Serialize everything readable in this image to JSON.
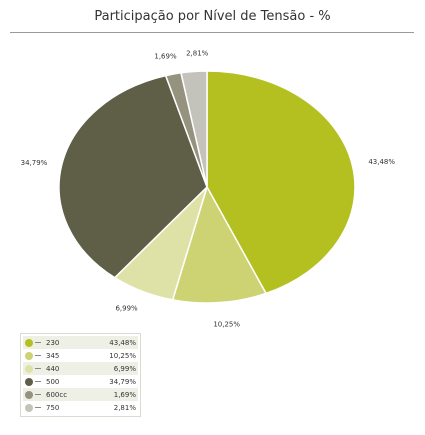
{
  "chart_data": {
    "type": "pie",
    "title": "Participação por Nível de Tensão - %",
    "slices": [
      {
        "name": "230",
        "value": 43.48,
        "label": "43,48%",
        "color": "#b4c020"
      },
      {
        "name": "345",
        "value": 10.25,
        "label": "10,25%",
        "color": "#cdd272"
      },
      {
        "name": "440",
        "value": 6.99,
        "label": "6,99%",
        "color": "#dfe2a7"
      },
      {
        "name": "500",
        "value": 34.79,
        "label": "34,79%",
        "color": "#5f5e47"
      },
      {
        "name": "600cc",
        "value": 1.69,
        "label": "1,69%",
        "color": "#95927f"
      },
      {
        "name": "750",
        "value": 2.81,
        "label": "2,81%",
        "color": "#c4c3bb"
      }
    ],
    "legend_position": "bottom-left"
  }
}
